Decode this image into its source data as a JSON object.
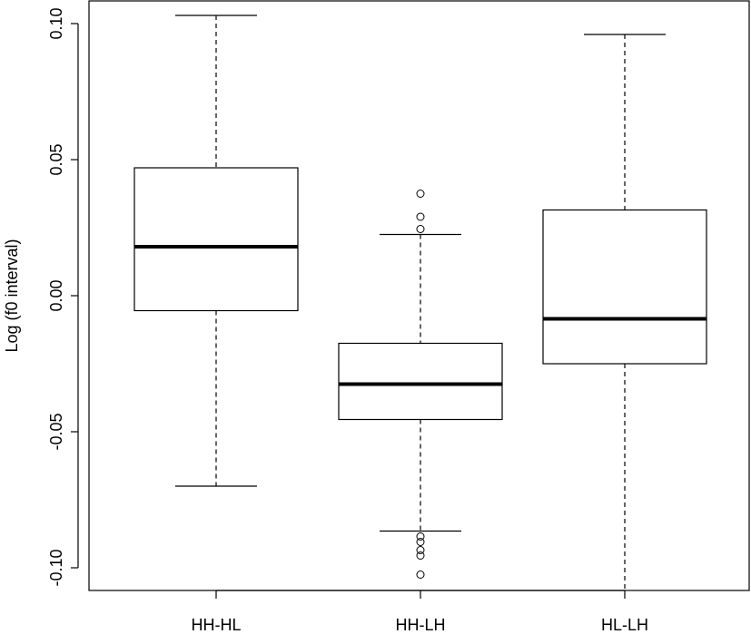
{
  "chart_data": {
    "type": "boxplot",
    "title": "",
    "xlabel": "",
    "ylabel": "Log (f0 interval)",
    "ylim": [
      -0.108,
      0.108
    ],
    "yticks": [
      -0.1,
      -0.05,
      0.0,
      0.05,
      0.1
    ],
    "ytick_labels": [
      "-0.10",
      "-0.05",
      "0.00",
      "0.05",
      "0.10"
    ],
    "categories": [
      "HH-HL",
      "HH-LH",
      "HL-LH"
    ],
    "boxes": [
      {
        "category": "HH-HL",
        "whisker_low": -0.07,
        "q1": -0.0055,
        "median": 0.018,
        "q3": 0.047,
        "whisker_high": 0.103,
        "outliers": []
      },
      {
        "category": "HH-LH",
        "whisker_low": -0.0865,
        "q1": -0.0455,
        "median": -0.0325,
        "q3": -0.0175,
        "whisker_high": 0.0225,
        "outliers": [
          0.0375,
          0.029,
          0.0245,
          -0.0885,
          -0.0905,
          -0.0935,
          -0.0955,
          -0.1025
        ]
      },
      {
        "category": "HL-LH",
        "whisker_low": -0.108,
        "q1": -0.025,
        "median": -0.0085,
        "q3": 0.0315,
        "whisker_high": 0.096,
        "outliers": []
      }
    ],
    "grid": false,
    "legend": "none"
  }
}
